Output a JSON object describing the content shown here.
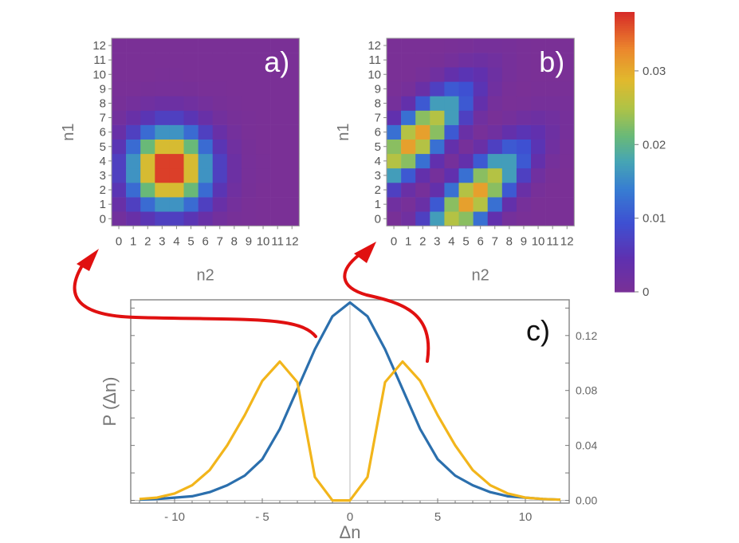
{
  "chart_data": [
    {
      "type": "heatmap",
      "panel_label": "a)",
      "xlabel": "n2",
      "ylabel": "n1",
      "x_ticks": [
        "0",
        "1",
        "2",
        "3",
        "4",
        "5",
        "6",
        "7",
        "8",
        "9",
        "10",
        "11",
        "12"
      ],
      "y_ticks": [
        "0",
        "1",
        "2",
        "3",
        "4",
        "5",
        "6",
        "7",
        "8",
        "9",
        "10",
        "11",
        "12"
      ],
      "model": "single",
      "peak_value": 0.037,
      "center": [
        3.5,
        3.5
      ],
      "sigma": 1.9
    },
    {
      "type": "heatmap",
      "panel_label": "b)",
      "xlabel": "n2",
      "ylabel": "n1",
      "x_ticks": [
        "0",
        "1",
        "2",
        "3",
        "4",
        "5",
        "6",
        "7",
        "8",
        "9",
        "10",
        "11",
        "12"
      ],
      "y_ticks": [
        "0",
        "1",
        "2",
        "3",
        "4",
        "5",
        "6",
        "7",
        "8",
        "9",
        "10",
        "11",
        "12"
      ],
      "model": "split",
      "peak_value": 0.031,
      "center": [
        3.5,
        3.5
      ],
      "sigma": 1.9,
      "shift": 3
    },
    {
      "type": "colorbar",
      "range": [
        0,
        0.038
      ],
      "ticks": [
        {
          "value": 0.03,
          "label": "0.03"
        },
        {
          "value": 0.02,
          "label": "0.02"
        },
        {
          "value": 0.01,
          "label": "0.01"
        },
        {
          "value": 0,
          "label": "0"
        }
      ]
    },
    {
      "type": "line",
      "panel_label": "c)",
      "xlabel": "Δn",
      "ylabel": "P (Δn)",
      "xlim": [
        -12.5,
        12.5
      ],
      "ylim": [
        -0.002,
        0.146
      ],
      "x_ticks": [
        {
          "value": -10,
          "label": "- 10"
        },
        {
          "value": -5,
          "label": "- 5"
        },
        {
          "value": 0,
          "label": "0"
        },
        {
          "value": 5,
          "label": "5"
        },
        {
          "value": 10,
          "label": "10"
        }
      ],
      "y_ticks": [
        {
          "value": 0,
          "label": "0.00"
        },
        {
          "value": 0.04,
          "label": "0.04"
        },
        {
          "value": 0.08,
          "label": "0.08"
        },
        {
          "value": 0.12,
          "label": "0.12"
        }
      ],
      "x": [
        -12,
        -11,
        -10,
        -9,
        -8,
        -7,
        -6,
        -5,
        -4,
        -3,
        -2,
        -1,
        0,
        1,
        2,
        3,
        4,
        5,
        6,
        7,
        8,
        9,
        10,
        11,
        12
      ],
      "series": [
        {
          "color": "#2b6fad",
          "values": [
            0.0005,
            0.001,
            0.002,
            0.003,
            0.006,
            0.011,
            0.018,
            0.03,
            0.052,
            0.081,
            0.11,
            0.134,
            0.144,
            0.134,
            0.11,
            0.081,
            0.052,
            0.03,
            0.018,
            0.011,
            0.006,
            0.003,
            0.002,
            0.001,
            0.0005
          ]
        },
        {
          "color": "#f2b51b",
          "values": [
            0.001,
            0.002,
            0.005,
            0.011,
            0.022,
            0.04,
            0.062,
            0.087,
            0.101,
            0.086,
            0.017,
            0.0,
            0.0,
            0.017,
            0.086,
            0.101,
            0.087,
            0.062,
            0.04,
            0.022,
            0.011,
            0.005,
            0.002,
            0.001,
            0.0005
          ]
        }
      ],
      "arrow_color": "#e01010"
    }
  ]
}
